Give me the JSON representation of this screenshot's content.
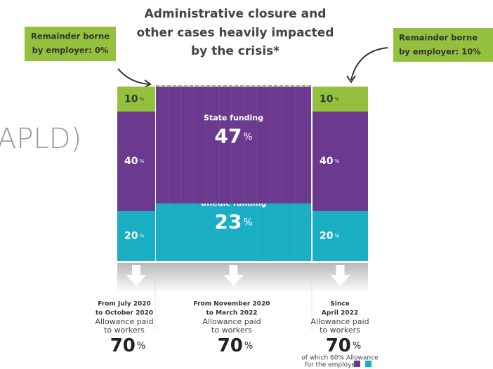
{
  "title": [
    "Administrative closure and",
    "other cases heavily impacted",
    "by the crisis*"
  ],
  "callouts": [
    {
      "lines": [
        "Remainder borne",
        "by employer: 0%"
      ]
    },
    {
      "lines": [
        "Remainder borne",
        "by employer: 10%"
      ]
    }
  ],
  "background_text": "APLD)",
  "unit": "%",
  "columns": [
    {
      "segments": [
        {
          "value": 10
        },
        {
          "value": 40
        },
        {
          "value": 20
        }
      ],
      "period": [
        "From July 2020",
        "to October 2020"
      ],
      "caption": [
        "Allowance paid",
        "to workers"
      ],
      "total": 70
    },
    {
      "segments": [
        {
          "label": "State funding",
          "value": 47
        },
        {
          "label": "Unédic funding",
          "value": 23
        }
      ],
      "period": [
        "From November 2020",
        "to March 2022"
      ],
      "caption": [
        "Allowance paid",
        "to workers"
      ],
      "total": 70
    },
    {
      "segments": [
        {
          "value": 10
        },
        {
          "value": 40
        },
        {
          "value": 20
        }
      ],
      "period": [
        "Since",
        "April 2022"
      ],
      "caption": [
        "Allowance paid",
        "to workers"
      ],
      "total": 70,
      "note": [
        "of which 60% Allowance",
        "for the employer"
      ]
    }
  ]
}
